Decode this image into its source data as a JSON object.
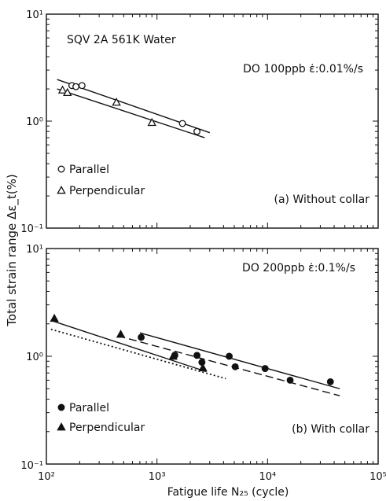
{
  "figure": {
    "ylabel": "Total strain range  Δε_t(%)",
    "xlabel": "Fatigue life   N₂₅ (cycle)"
  },
  "chart_data": [
    {
      "type": "scatter",
      "panel": "a",
      "xscale": "log",
      "yscale": "log",
      "xlim": [
        100,
        100000
      ],
      "ylim": [
        0.1,
        10
      ],
      "x_tick_labels": [
        "10²",
        "10³",
        "10⁴",
        "10⁵"
      ],
      "y_tick_labels": [
        "10⁻¹",
        "10⁰",
        "10¹"
      ],
      "material_text": "SQV 2A   561K Water",
      "condition_text": "DO 100ppb  ε̇:0.01%/s",
      "caption": "(a)  Without collar",
      "legend": [
        {
          "marker": "open-circle",
          "label": "Parallel"
        },
        {
          "marker": "open-triangle",
          "label": "Perpendicular"
        }
      ],
      "series": [
        {
          "name": "Parallel",
          "marker": "open-circle",
          "points": [
            [
              170,
              2.15
            ],
            [
              185,
              2.1
            ],
            [
              210,
              2.15
            ],
            [
              1700,
              0.95
            ],
            [
              2300,
              0.8
            ]
          ]
        },
        {
          "name": "Perpendicular",
          "marker": "open-triangle",
          "points": [
            [
              140,
              1.95
            ],
            [
              155,
              1.85
            ],
            [
              430,
              1.5
            ],
            [
              900,
              0.97
            ]
          ]
        }
      ],
      "fit_lines": [
        {
          "style": "solid",
          "from": [
            125,
            2.45
          ],
          "to": [
            3000,
            0.78
          ]
        },
        {
          "style": "solid",
          "from": [
            125,
            2.0
          ],
          "to": [
            2700,
            0.7
          ]
        }
      ]
    },
    {
      "type": "scatter",
      "panel": "b",
      "xscale": "log",
      "yscale": "log",
      "xlim": [
        100,
        100000
      ],
      "ylim": [
        0.1,
        10
      ],
      "x_tick_labels": [
        "10²",
        "10³",
        "10⁴",
        "10⁵"
      ],
      "y_tick_labels": [
        "10⁻¹",
        "10⁰",
        "10¹"
      ],
      "condition_text": "DO 200ppb  ε̇:0.1%/s",
      "caption": "(b)  With collar",
      "legend": [
        {
          "marker": "filled-circle",
          "label": "Parallel"
        },
        {
          "marker": "filled-triangle",
          "label": "Perpendicular"
        }
      ],
      "series": [
        {
          "name": "Parallel",
          "marker": "filled-circle",
          "points": [
            [
              720,
              1.5
            ],
            [
              1450,
              1.02
            ],
            [
              2300,
              1.02
            ],
            [
              2550,
              0.88
            ],
            [
              4500,
              1.0
            ],
            [
              5100,
              0.8
            ],
            [
              9500,
              0.77
            ],
            [
              16000,
              0.6
            ],
            [
              37000,
              0.58
            ]
          ]
        },
        {
          "name": "Perpendicular",
          "marker": "filled-triangle",
          "points": [
            [
              118,
              2.25
            ],
            [
              470,
              1.6
            ],
            [
              1400,
              1.0
            ],
            [
              2600,
              0.78
            ]
          ]
        }
      ],
      "fit_lines": [
        {
          "style": "solid",
          "from": [
            110,
            2.15
          ],
          "to": [
            2800,
            0.72
          ]
        },
        {
          "style": "dotted",
          "from": [
            110,
            1.78
          ],
          "to": [
            4200,
            0.62
          ]
        },
        {
          "style": "solid",
          "from": [
            700,
            1.65
          ],
          "to": [
            45000,
            0.5
          ]
        },
        {
          "style": "dashed",
          "from": [
            440,
            1.55
          ],
          "to": [
            45000,
            0.43
          ]
        }
      ]
    }
  ]
}
